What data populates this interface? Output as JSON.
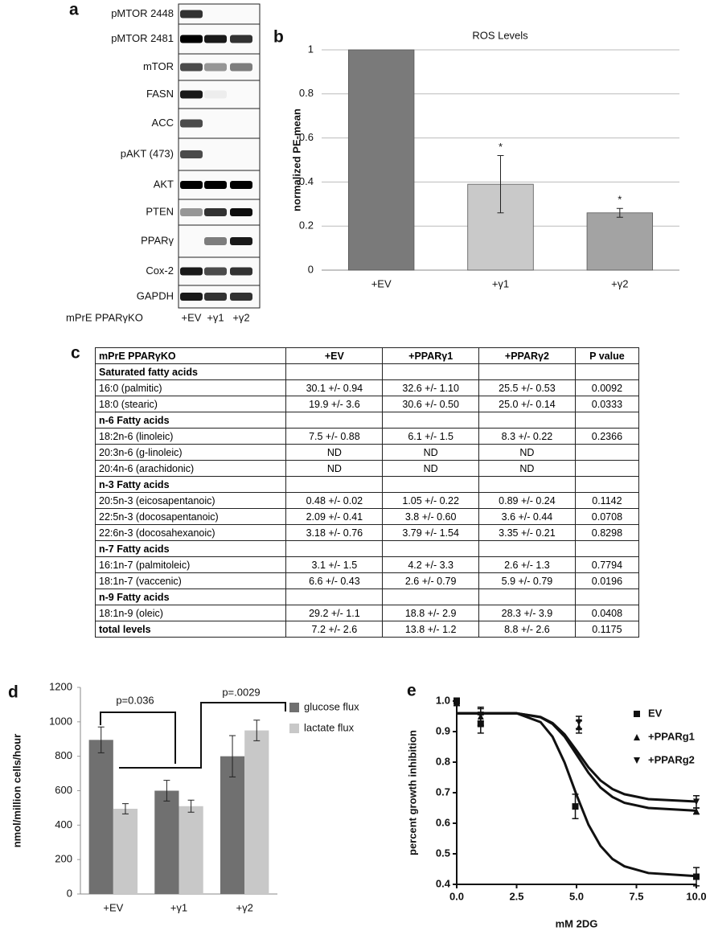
{
  "blot": {
    "panel": "a",
    "rows": [
      "pMTOR 2448",
      "pMTOR 2481",
      "mTOR",
      "FASN",
      "ACC",
      "pAKT (473)",
      "AKT",
      "PTEN",
      "PPARγ",
      "Cox-2",
      "GAPDH"
    ],
    "footer": [
      "mPrE PPARγKO",
      "+EV",
      "+γ1",
      "+γ2"
    ]
  },
  "table": {
    "panel": "c",
    "header": [
      "mPrE PPARγKO",
      "+EV",
      "+PPARγ1",
      "+PPARγ2",
      "P value"
    ],
    "rows": [
      [
        "Saturated fatty acids"
      ],
      [
        "16:0 (palmitic)",
        "30.1 +/- 0.94",
        "32.6 +/- 1.10",
        "25.5 +/- 0.53",
        "0.0092"
      ],
      [
        "18:0 (stearic)",
        "19.9 +/- 3.6",
        "30.6 +/- 0.50",
        "25.0 +/- 0.14",
        "0.0333"
      ],
      [
        "n-6 Fatty acids"
      ],
      [
        "18:2n-6 (linoleic)",
        "7.5 +/- 0.88",
        "6.1 +/- 1.5",
        "8.3 +/- 0.22",
        "0.2366"
      ],
      [
        "20:3n-6 (g-linoleic)",
        "ND",
        "ND",
        "ND"
      ],
      [
        "20:4n-6 (arachidonic)",
        "ND",
        "ND",
        "ND"
      ],
      [
        "n-3 Fatty acids"
      ],
      [
        "20:5n-3 (eicosapentanoic)",
        "0.48 +/- 0.02",
        "1.05 +/- 0.22",
        "0.89 +/- 0.24",
        "0.1142"
      ],
      [
        "22:5n-3 (docosapentanoic)",
        "2.09 +/- 0.41",
        "3.8 +/- 0.60",
        "3.6 +/- 0.44",
        "0.0708"
      ],
      [
        "22:6n-3 (docosahexanoic)",
        "3.18 +/- 0.76",
        "3.79 +/- 1.54",
        "3.35 +/- 0.21",
        "0.8298"
      ],
      [
        "n-7 Fatty acids"
      ],
      [
        "16:1n-7 (palmitoleic)",
        "3.1 +/- 1.5",
        "4.2 +/- 3.3",
        "2.6 +/- 1.3",
        "0.7794"
      ],
      [
        "18:1n-7 (vaccenic)",
        "6.6 +/- 0.43",
        "2.6 +/- 0.79",
        "5.9 +/- 0.79",
        "0.0196"
      ],
      [
        "n-9 Fatty acids"
      ],
      [
        "18:1n-9 (oleic)",
        "29.2 +/- 1.1",
        "18.8 +/- 2.9",
        "28.3 +/- 3.9",
        "0.0408"
      ],
      [
        "total levels",
        "7.2 +/- 2.6",
        "13.8 +/- 1.2",
        "8.8 +/- 2.6",
        "0.1175"
      ]
    ]
  },
  "chart_data": [
    {
      "panel": "b",
      "type": "bar",
      "title": "ROS Levels",
      "ylabel": "normalized PE-mean",
      "categories": [
        "+EV",
        "+γ1",
        "+γ2"
      ],
      "values": [
        1,
        0.39,
        0.26
      ],
      "errors": [
        null,
        0.13,
        0.02
      ],
      "colors": [
        "#7a7a7a",
        "#c9c9c9",
        "#a3a3a3"
      ],
      "value_annotations": [
        null,
        "*",
        "*"
      ],
      "ylim": [
        0,
        1
      ],
      "yticks": [
        0,
        0.2,
        0.4,
        0.6,
        0.8,
        1
      ],
      "grid": true
    },
    {
      "panel": "d",
      "type": "bar",
      "ylabel": "nmol/million cells/hour",
      "categories": [
        "+EV",
        "+γ1",
        "+γ2"
      ],
      "series": [
        {
          "name": "glucose flux",
          "color": "#707070",
          "values": [
            895,
            600,
            800
          ],
          "errors": [
            75,
            60,
            120
          ]
        },
        {
          "name": "lactate flux",
          "color": "#c8c8c8",
          "values": [
            495,
            510,
            950
          ],
          "errors": [
            30,
            35,
            60
          ]
        }
      ],
      "annotations": [
        "p=0.036",
        "p=.0029"
      ],
      "ylim": [
        0,
        1200
      ],
      "yticks": [
        0,
        200,
        400,
        600,
        800,
        1000,
        1200
      ],
      "grid": false,
      "legend": "right"
    },
    {
      "panel": "e",
      "type": "scatter",
      "xlabel": "mM 2DG",
      "ylabel": "percent growth inhibition",
      "series": [
        {
          "name": "EV",
          "color": "#111111",
          "marker": "square",
          "x": [
            0,
            1,
            4.95,
            10
          ],
          "values": [
            1.0,
            0.925,
            0.655,
            0.425
          ],
          "errors": [
            0.01,
            0.03,
            0.04,
            0.03
          ],
          "curve": {
            "x": [
              0,
              2.5,
              3.5,
              4,
              4.5,
              5,
              5.5,
              6,
              6.5,
              7,
              8,
              10
            ],
            "values": [
              0.96,
              0.96,
              0.931,
              0.883,
              0.799,
              0.693,
              0.595,
              0.526,
              0.483,
              0.459,
              0.437,
              0.427
            ]
          }
        },
        {
          "name": "+PPARg1",
          "color": "#111111",
          "marker": "triangle-up",
          "x": [
            0,
            1,
            5.1,
            10
          ],
          "values": [
            0.995,
            0.95,
            0.915,
            0.64
          ],
          "errors": [
            0.01,
            0.03,
            0.02,
            0.01
          ],
          "curve": {
            "x": [
              0,
              2.5,
              3.5,
              4,
              4.5,
              5,
              5.5,
              6,
              6.5,
              7,
              8,
              10
            ],
            "values": [
              0.96,
              0.96,
              0.947,
              0.925,
              0.884,
              0.825,
              0.765,
              0.717,
              0.686,
              0.667,
              0.65,
              0.641
            ]
          }
        },
        {
          "name": "+PPARg2",
          "color": "#111111",
          "marker": "triangle-down",
          "x": [
            0,
            1,
            5.1,
            10
          ],
          "values": [
            0.995,
            0.955,
            0.93,
            0.67
          ],
          "errors": [
            0.01,
            0.02,
            0.02,
            0.02
          ],
          "curve": {
            "x": [
              0,
              2.5,
              3.5,
              4,
              4.5,
              5,
              5.5,
              6,
              6.5,
              7,
              8,
              10
            ],
            "values": [
              0.96,
              0.96,
              0.948,
              0.928,
              0.891,
              0.838,
              0.783,
              0.74,
              0.712,
              0.695,
              0.679,
              0.671
            ]
          }
        }
      ],
      "xlim": [
        0,
        10
      ],
      "xticks": [
        {
          "value": 0,
          "label": "0.0"
        },
        2.5,
        {
          "value": 5,
          "label": "5.0"
        },
        7.5,
        {
          "value": 10,
          "label": "10.0"
        }
      ],
      "ylim": [
        0.4,
        1.0
      ],
      "yticks": [
        0.4,
        0.5,
        0.6,
        0.7,
        0.8,
        0.9,
        {
          "value": 1,
          "label": "1.0"
        }
      ],
      "legend": "upper right"
    }
  ]
}
